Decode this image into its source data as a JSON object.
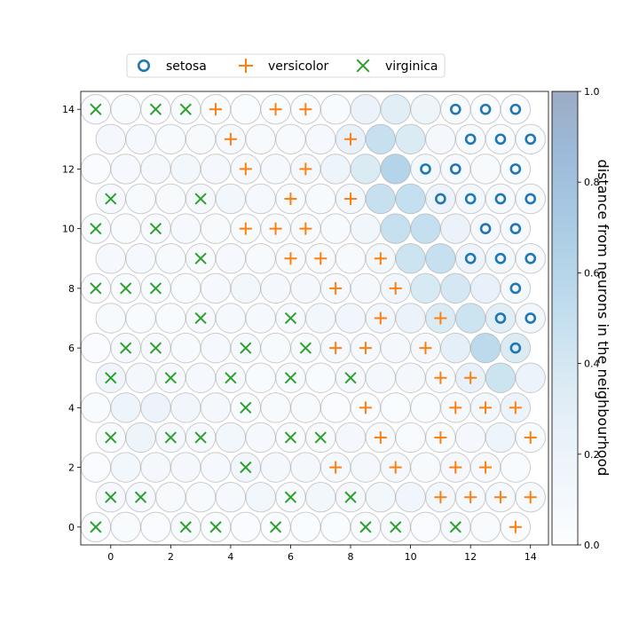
{
  "chart_data": {
    "type": "scatter",
    "subtype": "hexagonal-som-distance-map",
    "xlim": [
      -1,
      14.6
    ],
    "ylim": [
      -0.6,
      14.6
    ],
    "x_ticks": [
      "0",
      "2",
      "4",
      "6",
      "8",
      "10",
      "12",
      "14"
    ],
    "y_ticks": [
      "0",
      "2",
      "4",
      "6",
      "8",
      "10",
      "12",
      "14"
    ],
    "colorbar": {
      "label": "distance from neurons in the neighbourhood",
      "ticks": [
        "0.0",
        "0.2",
        "0.4",
        "0.6",
        "0.8",
        "1.0"
      ],
      "range": [
        0,
        1
      ],
      "colormap": "Blues"
    },
    "legend": {
      "position": "top",
      "entries": [
        {
          "name": "setosa",
          "marker": "o",
          "color": "#1f77b4"
        },
        {
          "name": "versicolor",
          "marker": "+",
          "color": "#ff7f0e"
        },
        {
          "name": "virginica",
          "marker": "x",
          "color": "#2ca02c"
        }
      ]
    },
    "distances": [
      [
        0.03,
        0.05,
        0.04,
        0.06,
        0.03,
        0.04,
        0.02,
        0.03,
        0.03,
        0.05,
        0.06,
        0.04,
        0.08,
        0.05,
        0.02
      ],
      [
        0.08,
        0.09,
        0.07,
        0.07,
        0.09,
        0.12,
        0.07,
        0.12,
        0.1,
        0.12,
        0.15,
        0.12,
        0.09,
        0.08,
        0.06
      ],
      [
        0.04,
        0.12,
        0.1,
        0.1,
        0.08,
        0.15,
        0.1,
        0.1,
        0.08,
        0.1,
        0.1,
        0.06,
        0.1,
        0.08,
        0.05
      ],
      [
        0.06,
        0.18,
        0.1,
        0.08,
        0.12,
        0.08,
        0.05,
        0.06,
        0.1,
        0.07,
        0.05,
        0.05,
        0.1,
        0.18,
        0.05
      ],
      [
        0.05,
        0.18,
        0.2,
        0.15,
        0.1,
        0.05,
        0.06,
        0.06,
        0.04,
        0.04,
        0.03,
        0.05,
        0.08,
        0.12,
        0.2
      ],
      [
        0.16,
        0.1,
        0.08,
        0.08,
        0.08,
        0.05,
        0.06,
        0.05,
        0.1,
        0.1,
        0.1,
        0.08,
        0.25,
        0.45,
        0.2
      ],
      [
        0.04,
        0.08,
        0.08,
        0.06,
        0.08,
        0.09,
        0.06,
        0.06,
        0.08,
        0.08,
        0.1,
        0.1,
        0.28,
        0.55,
        0.35
      ],
      [
        0.06,
        0.05,
        0.05,
        0.08,
        0.09,
        0.08,
        0.08,
        0.12,
        0.15,
        0.15,
        0.22,
        0.35,
        0.45,
        0.3,
        0.12
      ],
      [
        0.04,
        0.05,
        0.05,
        0.05,
        0.08,
        0.12,
        0.1,
        0.1,
        0.08,
        0.1,
        0.15,
        0.38,
        0.4,
        0.25,
        0.1
      ],
      [
        0.08,
        0.08,
        0.06,
        0.06,
        0.08,
        0.06,
        0.06,
        0.06,
        0.06,
        0.12,
        0.45,
        0.48,
        0.2,
        0.12,
        0.06
      ],
      [
        0.05,
        0.05,
        0.06,
        0.08,
        0.06,
        0.05,
        0.06,
        0.06,
        0.06,
        0.15,
        0.48,
        0.5,
        0.22,
        0.1,
        0.08
      ],
      [
        0.08,
        0.06,
        0.06,
        0.1,
        0.12,
        0.08,
        0.06,
        0.06,
        0.12,
        0.48,
        0.5,
        0.2,
        0.12,
        0.08,
        0.06
      ],
      [
        0.04,
        0.08,
        0.1,
        0.12,
        0.1,
        0.08,
        0.08,
        0.1,
        0.18,
        0.35,
        0.62,
        0.12,
        0.08,
        0.06,
        0.05
      ],
      [
        0.1,
        0.08,
        0.06,
        0.06,
        0.08,
        0.06,
        0.06,
        0.08,
        0.25,
        0.48,
        0.35,
        0.1,
        0.06,
        0.05,
        0.05
      ],
      [
        0.04,
        0.05,
        0.04,
        0.05,
        0.04,
        0.03,
        0.03,
        0.03,
        0.05,
        0.22,
        0.3,
        0.18,
        0.06,
        0.04,
        0.04
      ]
    ],
    "markers": [
      {
        "x": -0.5,
        "y": 14,
        "label": "virginica"
      },
      {
        "x": 1.5,
        "y": 14,
        "label": "virginica"
      },
      {
        "x": 2.5,
        "y": 14,
        "label": "virginica"
      },
      {
        "x": 3.5,
        "y": 14,
        "label": "versicolor"
      },
      {
        "x": 5.5,
        "y": 14,
        "label": "versicolor"
      },
      {
        "x": 6.5,
        "y": 14,
        "label": "versicolor"
      },
      {
        "x": 11.5,
        "y": 14,
        "label": "setosa"
      },
      {
        "x": 12.5,
        "y": 14,
        "label": "setosa"
      },
      {
        "x": 13.5,
        "y": 14,
        "label": "setosa"
      },
      {
        "x": 4,
        "y": 13,
        "label": "versicolor"
      },
      {
        "x": 8,
        "y": 13,
        "label": "versicolor"
      },
      {
        "x": 12,
        "y": 13,
        "label": "setosa"
      },
      {
        "x": 13,
        "y": 13,
        "label": "setosa"
      },
      {
        "x": 14,
        "y": 13,
        "label": "setosa"
      },
      {
        "x": 4.5,
        "y": 12,
        "label": "versicolor"
      },
      {
        "x": 6.5,
        "y": 12,
        "label": "versicolor"
      },
      {
        "x": 10.5,
        "y": 12,
        "label": "setosa"
      },
      {
        "x": 11.5,
        "y": 12,
        "label": "setosa"
      },
      {
        "x": 13.5,
        "y": 12,
        "label": "setosa"
      },
      {
        "x": 0,
        "y": 11,
        "label": "virginica"
      },
      {
        "x": 3,
        "y": 11,
        "label": "virginica"
      },
      {
        "x": 6,
        "y": 11,
        "label": "versicolor"
      },
      {
        "x": 8,
        "y": 11,
        "label": "versicolor"
      },
      {
        "x": 11,
        "y": 11,
        "label": "setosa"
      },
      {
        "x": 12,
        "y": 11,
        "label": "setosa"
      },
      {
        "x": 13,
        "y": 11,
        "label": "setosa"
      },
      {
        "x": 14,
        "y": 11,
        "label": "setosa"
      },
      {
        "x": -0.5,
        "y": 10,
        "label": "virginica"
      },
      {
        "x": 1.5,
        "y": 10,
        "label": "virginica"
      },
      {
        "x": 4.5,
        "y": 10,
        "label": "versicolor"
      },
      {
        "x": 5.5,
        "y": 10,
        "label": "versicolor"
      },
      {
        "x": 6.5,
        "y": 10,
        "label": "versicolor"
      },
      {
        "x": 12.5,
        "y": 10,
        "label": "setosa"
      },
      {
        "x": 13.5,
        "y": 10,
        "label": "setosa"
      },
      {
        "x": 3,
        "y": 9,
        "label": "virginica"
      },
      {
        "x": 6,
        "y": 9,
        "label": "versicolor"
      },
      {
        "x": 7,
        "y": 9,
        "label": "versicolor"
      },
      {
        "x": 9,
        "y": 9,
        "label": "versicolor"
      },
      {
        "x": 12,
        "y": 9,
        "label": "setosa"
      },
      {
        "x": 13,
        "y": 9,
        "label": "setosa"
      },
      {
        "x": 14,
        "y": 9,
        "label": "setosa"
      },
      {
        "x": -0.5,
        "y": 8,
        "label": "virginica"
      },
      {
        "x": 0.5,
        "y": 8,
        "label": "virginica"
      },
      {
        "x": 1.5,
        "y": 8,
        "label": "virginica"
      },
      {
        "x": 7.5,
        "y": 8,
        "label": "versicolor"
      },
      {
        "x": 9.5,
        "y": 8,
        "label": "versicolor"
      },
      {
        "x": 13.5,
        "y": 8,
        "label": "setosa"
      },
      {
        "x": 3,
        "y": 7,
        "label": "virginica"
      },
      {
        "x": 6,
        "y": 7,
        "label": "virginica"
      },
      {
        "x": 9,
        "y": 7,
        "label": "versicolor"
      },
      {
        "x": 11,
        "y": 7,
        "label": "versicolor"
      },
      {
        "x": 13,
        "y": 7,
        "label": "setosa"
      },
      {
        "x": 14,
        "y": 7,
        "label": "setosa"
      },
      {
        "x": 0.5,
        "y": 6,
        "label": "virginica"
      },
      {
        "x": 1.5,
        "y": 6,
        "label": "virginica"
      },
      {
        "x": 4.5,
        "y": 6,
        "label": "virginica"
      },
      {
        "x": 6.5,
        "y": 6,
        "label": "virginica"
      },
      {
        "x": 7.5,
        "y": 6,
        "label": "versicolor"
      },
      {
        "x": 8.5,
        "y": 6,
        "label": "versicolor"
      },
      {
        "x": 10.5,
        "y": 6,
        "label": "versicolor"
      },
      {
        "x": 13.5,
        "y": 6,
        "label": "setosa"
      },
      {
        "x": 0,
        "y": 5,
        "label": "virginica"
      },
      {
        "x": 2,
        "y": 5,
        "label": "virginica"
      },
      {
        "x": 4,
        "y": 5,
        "label": "virginica"
      },
      {
        "x": 6,
        "y": 5,
        "label": "virginica"
      },
      {
        "x": 8,
        "y": 5,
        "label": "virginica"
      },
      {
        "x": 11,
        "y": 5,
        "label": "versicolor"
      },
      {
        "x": 12,
        "y": 5,
        "label": "versicolor"
      },
      {
        "x": 4.5,
        "y": 4,
        "label": "virginica"
      },
      {
        "x": 8.5,
        "y": 4,
        "label": "versicolor"
      },
      {
        "x": 11.5,
        "y": 4,
        "label": "versicolor"
      },
      {
        "x": 12.5,
        "y": 4,
        "label": "versicolor"
      },
      {
        "x": 13.5,
        "y": 4,
        "label": "versicolor"
      },
      {
        "x": 0,
        "y": 3,
        "label": "virginica"
      },
      {
        "x": 2,
        "y": 3,
        "label": "virginica"
      },
      {
        "x": 3,
        "y": 3,
        "label": "virginica"
      },
      {
        "x": 6,
        "y": 3,
        "label": "virginica"
      },
      {
        "x": 7,
        "y": 3,
        "label": "virginica"
      },
      {
        "x": 9,
        "y": 3,
        "label": "versicolor"
      },
      {
        "x": 11,
        "y": 3,
        "label": "versicolor"
      },
      {
        "x": 14,
        "y": 3,
        "label": "versicolor"
      },
      {
        "x": 4.5,
        "y": 2,
        "label": "virginica"
      },
      {
        "x": 7.5,
        "y": 2,
        "label": "versicolor"
      },
      {
        "x": 9.5,
        "y": 2,
        "label": "versicolor"
      },
      {
        "x": 11.5,
        "y": 2,
        "label": "versicolor"
      },
      {
        "x": 12.5,
        "y": 2,
        "label": "versicolor"
      },
      {
        "x": 0,
        "y": 1,
        "label": "virginica"
      },
      {
        "x": 1,
        "y": 1,
        "label": "virginica"
      },
      {
        "x": 6,
        "y": 1,
        "label": "virginica"
      },
      {
        "x": 8,
        "y": 1,
        "label": "virginica"
      },
      {
        "x": 11,
        "y": 1,
        "label": "versicolor"
      },
      {
        "x": 12,
        "y": 1,
        "label": "versicolor"
      },
      {
        "x": 13,
        "y": 1,
        "label": "versicolor"
      },
      {
        "x": 14,
        "y": 1,
        "label": "versicolor"
      },
      {
        "x": -0.5,
        "y": 0,
        "label": "virginica"
      },
      {
        "x": 2.5,
        "y": 0,
        "label": "virginica"
      },
      {
        "x": 3.5,
        "y": 0,
        "label": "virginica"
      },
      {
        "x": 5.5,
        "y": 0,
        "label": "virginica"
      },
      {
        "x": 8.5,
        "y": 0,
        "label": "virginica"
      },
      {
        "x": 9.5,
        "y": 0,
        "label": "virginica"
      },
      {
        "x": 11.5,
        "y": 0,
        "label": "virginica"
      },
      {
        "x": 13.5,
        "y": 0,
        "label": "versicolor"
      }
    ]
  }
}
